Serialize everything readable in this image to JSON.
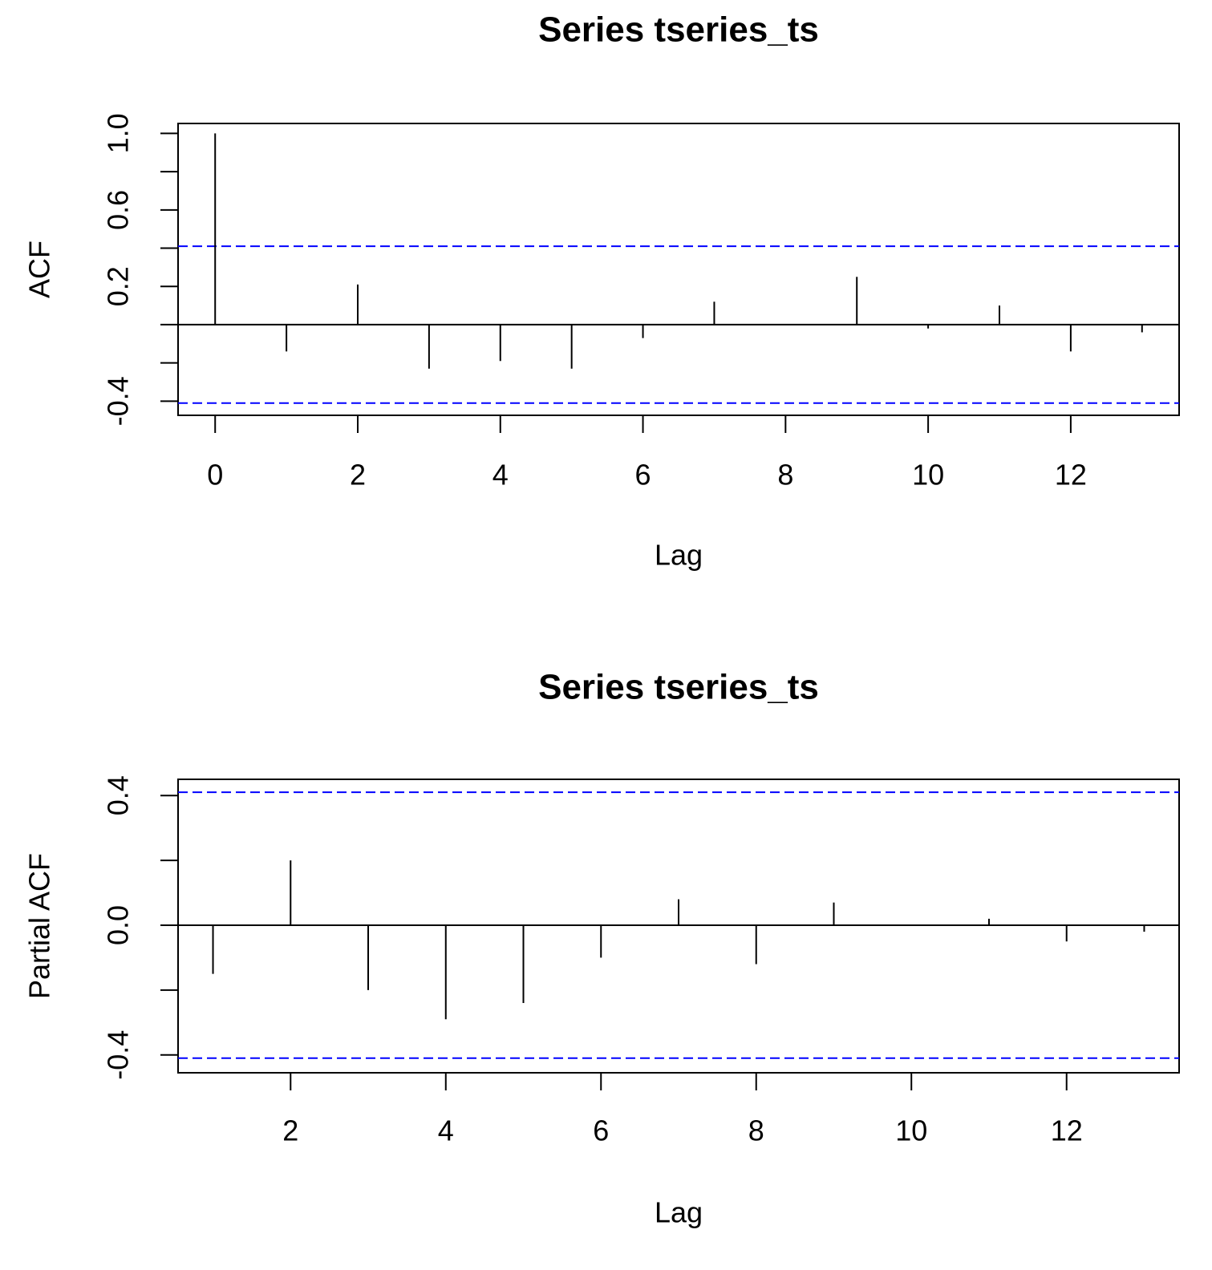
{
  "chart_data": [
    {
      "type": "stem",
      "title": "Series  tseries_ts",
      "x_label": "Lag",
      "y_label": "ACF",
      "x": [
        0,
        1,
        2,
        3,
        4,
        5,
        6,
        7,
        8,
        9,
        10,
        11,
        12,
        13
      ],
      "values": [
        1.0,
        -0.14,
        0.21,
        -0.23,
        -0.19,
        -0.23,
        -0.07,
        0.12,
        0.0,
        0.25,
        -0.02,
        0.1,
        -0.14,
        -0.04
      ],
      "color": "#000000",
      "conf_limits": [
        0.41,
        -0.41
      ],
      "conf_color": "#0000ff",
      "xlim": [
        -0.52,
        13.52
      ],
      "xticks": [
        0,
        2,
        4,
        6,
        8,
        10,
        12
      ],
      "ylim": [
        -0.474,
        1.052
      ],
      "yticks": [
        {
          "value": 1.0,
          "label": "1.0"
        },
        {
          "value": 0.8,
          "label": null
        },
        0.6,
        {
          "value": 0.4,
          "label": null
        },
        0.2,
        {
          "value": 0,
          "label": null
        },
        {
          "value": -0.2,
          "label": null
        },
        -0.4
      ]
    },
    {
      "type": "stem",
      "title": "Series  tseries_ts",
      "x_label": "Lag",
      "y_label": "Partial ACF",
      "x": [
        1,
        2,
        3,
        4,
        5,
        6,
        7,
        8,
        9,
        10,
        11,
        12,
        13
      ],
      "values": [
        -0.15,
        0.2,
        -0.2,
        -0.29,
        -0.24,
        -0.1,
        0.08,
        -0.12,
        0.07,
        0.0,
        0.02,
        -0.05,
        -0.02
      ],
      "color": "#000000",
      "conf_limits": [
        0.41,
        -0.41
      ],
      "conf_color": "#0000ff",
      "xlim": [
        0.55,
        13.45
      ],
      "xticks": [
        2,
        4,
        6,
        8,
        10,
        12
      ],
      "ylim": [
        -0.455,
        0.45
      ],
      "yticks": [
        0.4,
        {
          "value": 0.2,
          "label": null
        },
        {
          "value": 0.0,
          "label": "0.0"
        },
        {
          "value": -0.2,
          "label": null
        },
        -0.4
      ]
    }
  ]
}
